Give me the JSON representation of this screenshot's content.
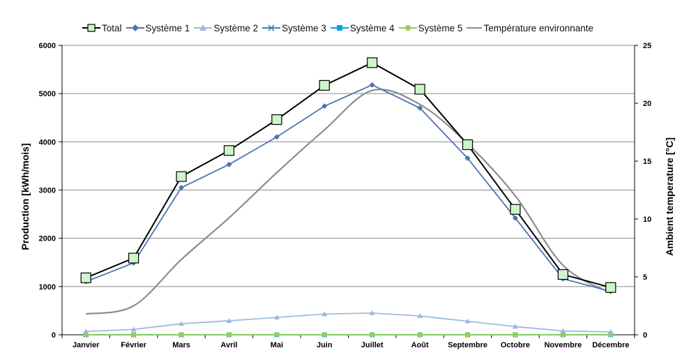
{
  "chart_data": {
    "type": "line",
    "categories": [
      "Janvier",
      "Février",
      "Mars",
      "Avril",
      "Mai",
      "Juin",
      "Juillet",
      "Août",
      "Septembre",
      "Octobre",
      "Novembre",
      "Décembre"
    ],
    "ylabel": "Production [kWh/mois]",
    "y2label": "Ambient temperature [°C]",
    "ylim": [
      0,
      6000
    ],
    "y2lim": [
      0,
      25
    ],
    "yticks": [
      "0",
      "1000",
      "2000",
      "3000",
      "4000",
      "5000",
      "6000"
    ],
    "y2ticks": [
      "0",
      "5",
      "10",
      "15",
      "20",
      "25"
    ],
    "grid": "horizontal",
    "legend_position": "top",
    "series": [
      {
        "name": "Total",
        "axis": "left",
        "color": "#000000",
        "marker": "square",
        "marker_fill": "#ccf5cc",
        "values": [
          1180,
          1590,
          3280,
          3820,
          4460,
          5170,
          5640,
          5090,
          3940,
          2600,
          1250,
          980
        ]
      },
      {
        "name": "Système 1",
        "axis": "left",
        "color": "#4a74b5",
        "marker": "diamond",
        "values": [
          1100,
          1490,
          3050,
          3530,
          4100,
          4740,
          5180,
          4700,
          3660,
          2420,
          1160,
          900
        ]
      },
      {
        "name": "Système 2",
        "axis": "left",
        "color": "#9db9e0",
        "marker": "triangle",
        "values": [
          70,
          110,
          230,
          290,
          360,
          430,
          450,
          390,
          280,
          170,
          80,
          60
        ]
      },
      {
        "name": "Système 3",
        "axis": "left",
        "color": "#2f8f9d",
        "marker": "x",
        "values": [
          0,
          0,
          0,
          0,
          0,
          0,
          0,
          0,
          0,
          0,
          0,
          0
        ]
      },
      {
        "name": "Système 4",
        "axis": "left",
        "color": "#00a2e8",
        "marker": "square",
        "values": [
          0,
          0,
          0,
          0,
          0,
          0,
          0,
          0,
          0,
          0,
          0,
          0
        ]
      },
      {
        "name": "Système 5",
        "axis": "left",
        "color": "#92d050",
        "marker": "circle",
        "values": [
          0,
          0,
          0,
          0,
          0,
          0,
          0,
          0,
          0,
          0,
          0,
          0
        ]
      },
      {
        "name": "Température environnante",
        "axis": "right",
        "color": "#8c8c8c",
        "marker": "none",
        "values": [
          1.8,
          2.5,
          6.5,
          10.1,
          14.0,
          17.7,
          21.1,
          19.9,
          16.5,
          12.0,
          6.0,
          3.6
        ]
      }
    ]
  }
}
